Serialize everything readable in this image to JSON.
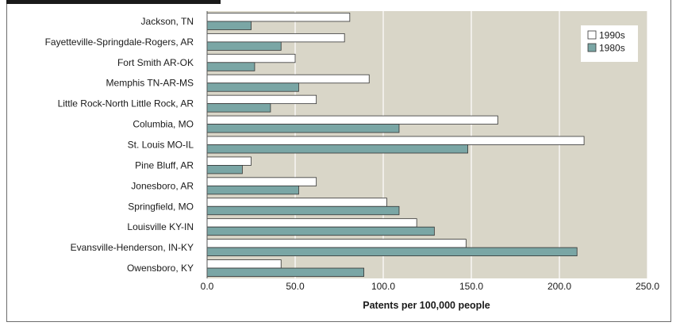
{
  "chart_data": {
    "type": "bar",
    "orientation": "horizontal",
    "categories": [
      "Jackson, TN",
      "Fayetteville-Springdale-Rogers, AR",
      "Fort Smith AR-OK",
      "Memphis TN-AR-MS",
      "Little Rock-North Little Rock, AR",
      "Columbia, MO",
      "St. Louis MO-IL",
      "Pine Bluff, AR",
      "Jonesboro, AR",
      "Springfield, MO",
      "Louisville KY-IN",
      "Evansville-Henderson, IN-KY",
      "Owensboro, KY"
    ],
    "series": [
      {
        "name": "1990s",
        "color": "#ffffff",
        "values": [
          81,
          78,
          50,
          92,
          62,
          165,
          214,
          25,
          62,
          102,
          119,
          147,
          42
        ]
      },
      {
        "name": "1980s",
        "color": "#7aa6a5",
        "values": [
          25,
          42,
          27,
          52,
          36,
          109,
          148,
          20,
          52,
          109,
          129,
          210,
          89
        ]
      }
    ],
    "xlabel": "Patents per 100,000 people",
    "xlim": [
      0,
      250
    ],
    "xticks": [
      "0.0",
      "50.0",
      "100.0",
      "150.0",
      "200.0",
      "250.0"
    ],
    "grid": true,
    "legend_position": "top-right",
    "plot_background": "#d9d6c8"
  }
}
